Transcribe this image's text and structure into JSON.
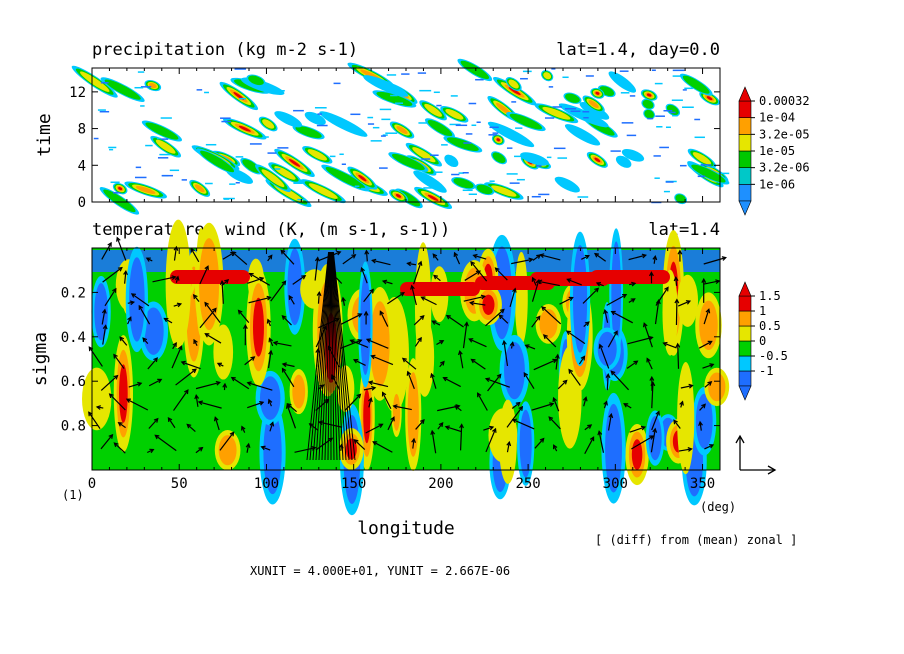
{
  "chart_data": [
    {
      "type": "heatmap",
      "title": "precipitation (kg m-2 s-1)",
      "subtitle": "lat=1.4, day=0.0",
      "ylabel": "time",
      "xlim": [
        0,
        360
      ],
      "ylim": [
        0,
        14.6
      ],
      "yticks": [
        "0",
        "4",
        "8",
        "12"
      ],
      "ytick_values": [
        0,
        4,
        8,
        12
      ],
      "legend": {
        "labels": [
          "0.00032",
          "1e-04",
          "3.2e-05",
          "1e-05",
          "3.2e-06",
          "1e-06"
        ],
        "colors": [
          "#1e90ff",
          "#00c8c8",
          "#00c800",
          "#e6e600",
          "#ffa000",
          "#e60000"
        ]
      }
    },
    {
      "type": "heatmap",
      "title": "temperature, wind (K, (m s-1, s-1))",
      "subtitle": "lat=1.4",
      "xlabel": "longitude",
      "ylabel": "sigma",
      "xlim": [
        0,
        360
      ],
      "ylim": [
        1.0,
        0.0
      ],
      "xticks": [
        "0",
        "50",
        "100",
        "150",
        "200",
        "250",
        "300",
        "350"
      ],
      "xtick_values": [
        0,
        50,
        100,
        150,
        200,
        250,
        300,
        350
      ],
      "yticks": [
        "0.2",
        "0.4",
        "0.6",
        "0.8"
      ],
      "ytick_values": [
        0.2,
        0.4,
        0.6,
        0.8
      ],
      "xunit_label": "(deg)",
      "panel_label": "(1)",
      "legend": {
        "labels": [
          "1.5",
          "1",
          "0.5",
          "0",
          "-0.5",
          "-1"
        ],
        "colors": [
          "#1e6eff",
          "#00c8ff",
          "#00d000",
          "#e6e600",
          "#ffa000",
          "#e60000"
        ]
      }
    }
  ],
  "annotation": "[ (diff) from (mean) zonal ]",
  "units_note": "XUNIT = 4.000E+01, YUNIT = 2.667E-06",
  "colors": {
    "blue": "#1e6eff",
    "cyan": "#00c8ff",
    "green": "#00d000",
    "yellow": "#e6e600",
    "orange": "#ffa000",
    "red": "#e60000"
  }
}
